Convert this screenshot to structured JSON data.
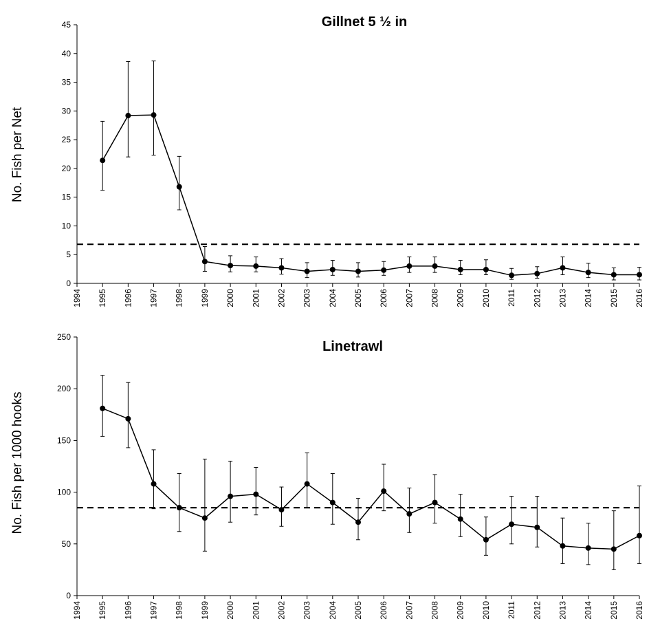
{
  "chart_data": [
    {
      "type": "line",
      "title": "Gillnet 5 ½ in",
      "xlabel": "",
      "ylabel": "No. Fish per Net",
      "xlim": [
        1994,
        2016
      ],
      "ylim": [
        0,
        45
      ],
      "yticks": [
        0,
        5,
        10,
        15,
        20,
        25,
        30,
        35,
        40,
        45
      ],
      "xtick_labels": [
        "1994",
        "1995",
        "1996",
        "1997",
        "1998",
        "1999",
        "2000",
        "2001",
        "2002",
        "2003",
        "2004",
        "2005",
        "2006",
        "2007",
        "2008",
        "2009",
        "2010",
        "2011",
        "2012",
        "2013",
        "2014",
        "2015",
        "2016"
      ],
      "reference_line": 6.8,
      "grid": false,
      "series": [
        {
          "x": [
            1995,
            1996,
            1997,
            1998,
            1999,
            2000,
            2001,
            2002,
            2003,
            2004,
            2005,
            2006,
            2007,
            2008,
            2009,
            2010,
            2011,
            2012,
            2013,
            2014,
            2015,
            2016
          ],
          "values": [
            21.4,
            29.2,
            29.3,
            16.8,
            3.8,
            3.1,
            3.0,
            2.7,
            2.1,
            2.4,
            2.1,
            2.3,
            3.0,
            3.0,
            2.4,
            2.4,
            1.4,
            1.7,
            2.7,
            1.9,
            1.5,
            1.5
          ],
          "err_low": [
            16.2,
            22.0,
            22.3,
            12.8,
            2.1,
            2.0,
            2.0,
            1.6,
            1.0,
            1.4,
            1.1,
            1.4,
            1.9,
            1.9,
            1.5,
            1.5,
            0.7,
            0.9,
            1.5,
            1.0,
            0.6,
            0.6
          ],
          "err_high": [
            28.2,
            38.6,
            38.7,
            22.1,
            6.4,
            4.8,
            4.6,
            4.3,
            3.6,
            4.0,
            3.6,
            3.8,
            4.6,
            4.6,
            4.0,
            4.1,
            2.6,
            2.9,
            4.6,
            3.5,
            2.7,
            2.8
          ]
        }
      ]
    },
    {
      "type": "line",
      "title": "Linetrawl",
      "xlabel": "",
      "ylabel": "No. Fish per 1000 hooks",
      "xlim": [
        1994,
        2016
      ],
      "ylim": [
        0,
        250
      ],
      "yticks": [
        0,
        50,
        100,
        150,
        200,
        250
      ],
      "xtick_labels": [
        "1994",
        "1995",
        "1996",
        "1997",
        "1998",
        "1999",
        "2000",
        "2001",
        "2002",
        "2003",
        "2004",
        "2005",
        "2006",
        "2007",
        "2008",
        "2009",
        "2010",
        "2011",
        "2012",
        "2013",
        "2014",
        "2015",
        "2016"
      ],
      "reference_line": 85,
      "grid": false,
      "series": [
        {
          "x": [
            1995,
            1996,
            1997,
            1998,
            1999,
            2000,
            2001,
            2002,
            2003,
            2004,
            2005,
            2006,
            2007,
            2008,
            2009,
            2010,
            2011,
            2012,
            2013,
            2014,
            2015,
            2016
          ],
          "values": [
            181,
            171,
            108,
            85,
            75,
            96,
            98,
            83,
            108,
            90,
            71,
            101,
            79,
            90,
            74,
            54,
            69,
            66,
            48,
            46,
            45,
            58
          ],
          "err_low": [
            154,
            143,
            84,
            62,
            43,
            71,
            78,
            67,
            85,
            69,
            54,
            82,
            61,
            70,
            57,
            39,
            50,
            47,
            31,
            30,
            25,
            31
          ],
          "err_high": [
            213,
            206,
            141,
            118,
            132,
            130,
            124,
            105,
            138,
            118,
            94,
            127,
            104,
            117,
            98,
            76,
            96,
            96,
            75,
            70,
            82,
            106
          ]
        }
      ]
    }
  ]
}
